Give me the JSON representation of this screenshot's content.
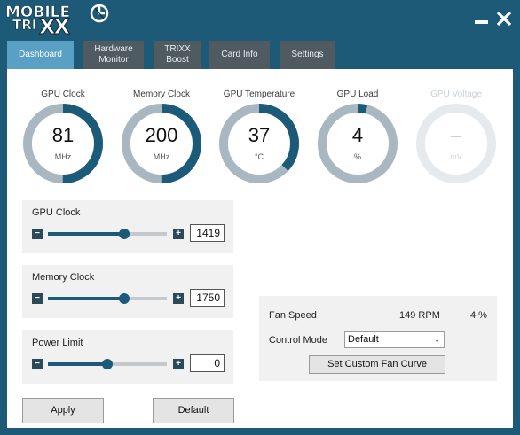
{
  "app": {
    "logo_line1": "MOBILE",
    "logo_line2": "TRI",
    "logo_line3": "XX",
    "accent_color": "#1b5a78",
    "titlebar_color": "#1d5a77"
  },
  "window_controls": {
    "minimize_icon": "minimize-icon",
    "close_icon": "close-icon"
  },
  "tabs": [
    {
      "label": "Dashboard",
      "active": true
    },
    {
      "label": "Hardware\nMonitor",
      "active": false
    },
    {
      "label": "TRIXX\nBoost",
      "active": false
    },
    {
      "label": "Card Info",
      "active": false
    },
    {
      "label": "Settings",
      "active": false
    }
  ],
  "gauges": [
    {
      "label": "GPU Clock",
      "value": "81",
      "unit": "MHz",
      "fraction": 0.5,
      "enabled": true
    },
    {
      "label": "Memory Clock",
      "value": "200",
      "unit": "MHz",
      "fraction": 0.5,
      "enabled": true
    },
    {
      "label": "GPU Temperature",
      "value": "37",
      "unit": "°C",
      "fraction": 0.37,
      "enabled": true
    },
    {
      "label": "GPU Load",
      "value": "4",
      "unit": "%",
      "fraction": 0.04,
      "enabled": true
    },
    {
      "label": "GPU Voltage",
      "value": "–",
      "unit": "mV",
      "fraction": 0,
      "enabled": false
    }
  ],
  "sliders": [
    {
      "label": "GPU Clock",
      "value": "1419",
      "fraction": 0.64
    },
    {
      "label": "Memory Clock",
      "value": "1750",
      "fraction": 0.64
    },
    {
      "label": "Power Limit",
      "value": "0",
      "fraction": 0.5
    }
  ],
  "fan": {
    "speed_label": "Fan Speed",
    "speed_rpm": "149 RPM",
    "speed_percent": "4 %",
    "mode_label": "Control Mode",
    "mode_value": "Default",
    "curve_button": "Set Custom Fan Curve"
  },
  "buttons": {
    "apply": "Apply",
    "default": "Default"
  }
}
